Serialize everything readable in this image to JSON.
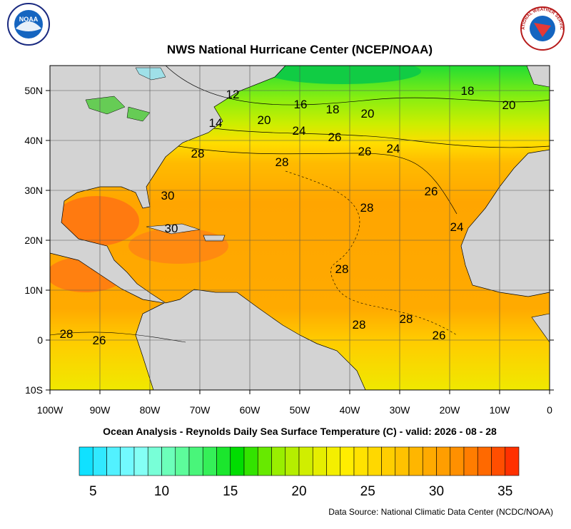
{
  "header": {
    "title": "NWS National Hurricane Center (NCEP/NOAA)",
    "noaa_logo": "NOAA",
    "nws_logo": "NATIONAL WEATHER SERVICE"
  },
  "map": {
    "lon_range": [
      -100,
      0
    ],
    "lat_range": [
      -10,
      55
    ],
    "lon_ticks": [
      {
        "value": -100,
        "label": "100W"
      },
      {
        "value": -90,
        "label": "90W"
      },
      {
        "value": -80,
        "label": "80W"
      },
      {
        "value": -70,
        "label": "70W"
      },
      {
        "value": -60,
        "label": "60W"
      },
      {
        "value": -50,
        "label": "50W"
      },
      {
        "value": -40,
        "label": "40W"
      },
      {
        "value": -30,
        "label": "30W"
      },
      {
        "value": -20,
        "label": "20W"
      },
      {
        "value": -10,
        "label": "10W"
      },
      0
    ],
    "lat_ticks": [
      {
        "value": 50,
        "label": "50N"
      },
      {
        "value": 40,
        "label": "40N"
      },
      {
        "value": 30,
        "label": "30N"
      },
      {
        "value": 20,
        "label": "20N"
      },
      {
        "value": 10,
        "label": "10N"
      },
      0,
      {
        "value": -10,
        "label": "10S"
      }
    ],
    "contour_labels": [
      12,
      16,
      18,
      20,
      18,
      20,
      14,
      20,
      24,
      26,
      26,
      24,
      28,
      28,
      26,
      30,
      28,
      30,
      24,
      28,
      28,
      28,
      26,
      28,
      26
    ]
  },
  "caption": "Ocean Analysis - Reynolds Daily Sea Surface Temperature (C) - valid: 2026 - 08 - 28",
  "colorbar": {
    "range": [
      4,
      36
    ],
    "ticks": [
      5,
      10,
      15,
      20,
      25,
      30,
      35
    ]
  },
  "source": "Data Source: National Climatic Data Center (NCDC/NOAA)"
}
